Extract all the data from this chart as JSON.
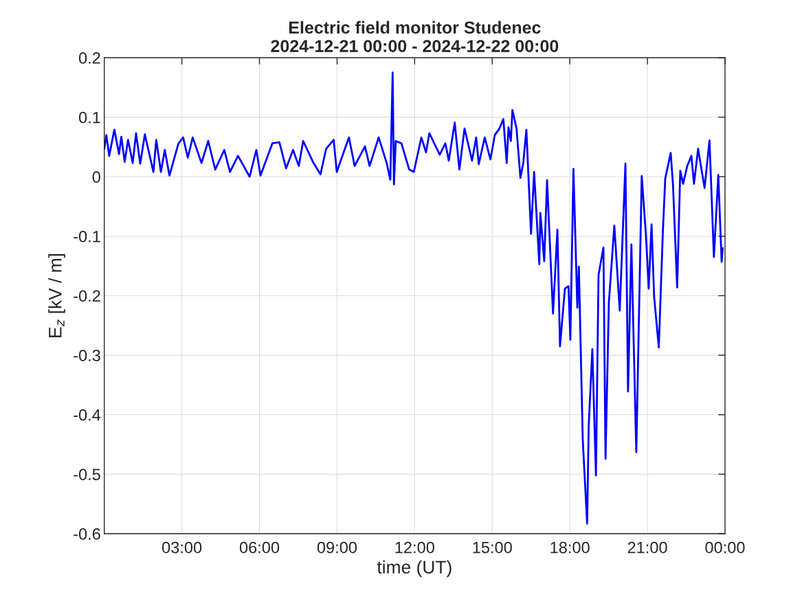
{
  "chart_data": {
    "type": "line",
    "title": "Electric field monitor Studenec\n2024-12-21 00:00 - 2024-12-22 00:00",
    "xlabel": "time (UT)",
    "ylabel": "E$_{z}$ [kV / m]",
    "xlim": [
      0,
      24
    ],
    "xticks": [
      {
        "value": 3,
        "label": "03:00"
      },
      {
        "value": 6,
        "label": "06:00"
      },
      {
        "value": 9,
        "label": "09:00"
      },
      {
        "value": 12,
        "label": "12:00"
      },
      {
        "value": 15,
        "label": "15:00"
      },
      {
        "value": 18,
        "label": "18:00"
      },
      {
        "value": 21,
        "label": "21:00"
      },
      {
        "value": 24,
        "label": "00:00"
      }
    ],
    "ylim": [
      -0.6,
      0.2
    ],
    "yticks": [
      -0.6,
      -0.5,
      -0.4,
      -0.3,
      -0.2,
      -0.1,
      0,
      0.1,
      0.2
    ],
    "grid": true,
    "line_style": "solid",
    "marker": "none",
    "series": [
      {
        "color": "#0000ff",
        "x": [
          0.0,
          0.08,
          0.19,
          0.39,
          0.57,
          0.66,
          0.79,
          0.92,
          1.1,
          1.23,
          1.39,
          1.57,
          1.9,
          2.01,
          2.19,
          2.34,
          2.52,
          2.87,
          3.05,
          3.23,
          3.42,
          3.76,
          4.02,
          4.29,
          4.64,
          4.86,
          5.17,
          5.62,
          5.88,
          6.04,
          6.5,
          6.77,
          7.03,
          7.3,
          7.52,
          7.69,
          8.09,
          8.36,
          8.58,
          8.87,
          8.99,
          9.46,
          9.68,
          10.08,
          10.26,
          10.61,
          10.92,
          11.06,
          11.15,
          11.2,
          11.27,
          11.49,
          11.79,
          11.97,
          12.26,
          12.44,
          12.57,
          12.97,
          13.19,
          13.32,
          13.55,
          13.73,
          13.93,
          14.22,
          14.38,
          14.48,
          14.71,
          14.93,
          15.1,
          15.28,
          15.43,
          15.56,
          15.63,
          15.72,
          15.78,
          15.94,
          16.09,
          16.2,
          16.32,
          16.5,
          16.62,
          16.82,
          16.86,
          17.01,
          17.12,
          17.35,
          17.52,
          17.62,
          17.81,
          17.95,
          18.02,
          18.14,
          18.29,
          18.35,
          18.5,
          18.67,
          18.73,
          18.87,
          19.01,
          19.11,
          19.3,
          19.38,
          19.51,
          19.72,
          19.93,
          20.15,
          20.25,
          20.38,
          20.57,
          20.78,
          20.94,
          21.05,
          21.16,
          21.26,
          21.44,
          21.6,
          21.69,
          21.9,
          21.99,
          22.15,
          22.27,
          22.38,
          22.54,
          22.7,
          22.8,
          22.96,
          23.21,
          23.4,
          23.57,
          23.74,
          23.87,
          23.91
        ],
        "values": [
          0.047,
          0.07,
          0.035,
          0.079,
          0.038,
          0.067,
          0.025,
          0.062,
          0.023,
          0.073,
          0.022,
          0.071,
          0.008,
          0.062,
          0.008,
          0.045,
          0.002,
          0.056,
          0.066,
          0.032,
          0.066,
          0.023,
          0.06,
          0.012,
          0.045,
          0.008,
          0.035,
          0.0,
          0.045,
          0.002,
          0.056,
          0.058,
          0.014,
          0.045,
          0.018,
          0.06,
          0.023,
          0.004,
          0.047,
          0.062,
          0.008,
          0.066,
          0.018,
          0.051,
          0.018,
          0.066,
          0.023,
          -0.005,
          0.175,
          -0.013,
          0.06,
          0.056,
          0.012,
          0.008,
          0.066,
          0.041,
          0.073,
          0.037,
          0.056,
          0.027,
          0.091,
          0.012,
          0.081,
          0.027,
          0.066,
          0.021,
          0.066,
          0.029,
          0.07,
          0.081,
          0.097,
          0.023,
          0.083,
          0.06,
          0.112,
          0.081,
          -0.002,
          0.023,
          0.079,
          -0.096,
          0.008,
          -0.147,
          -0.061,
          -0.142,
          -0.006,
          -0.23,
          -0.089,
          -0.285,
          -0.188,
          -0.184,
          -0.274,
          0.013,
          -0.22,
          -0.151,
          -0.442,
          -0.583,
          -0.419,
          -0.29,
          -0.502,
          -0.165,
          -0.119,
          -0.474,
          -0.211,
          -0.082,
          -0.225,
          0.022,
          -0.361,
          -0.114,
          -0.463,
          0.001,
          -0.096,
          -0.188,
          -0.08,
          -0.202,
          -0.287,
          -0.089,
          -0.003,
          0.04,
          -0.014,
          -0.186,
          0.01,
          -0.012,
          0.018,
          0.035,
          -0.012,
          0.047,
          -0.019,
          0.061,
          -0.135,
          0.003,
          -0.143,
          -0.12
        ]
      }
    ]
  }
}
